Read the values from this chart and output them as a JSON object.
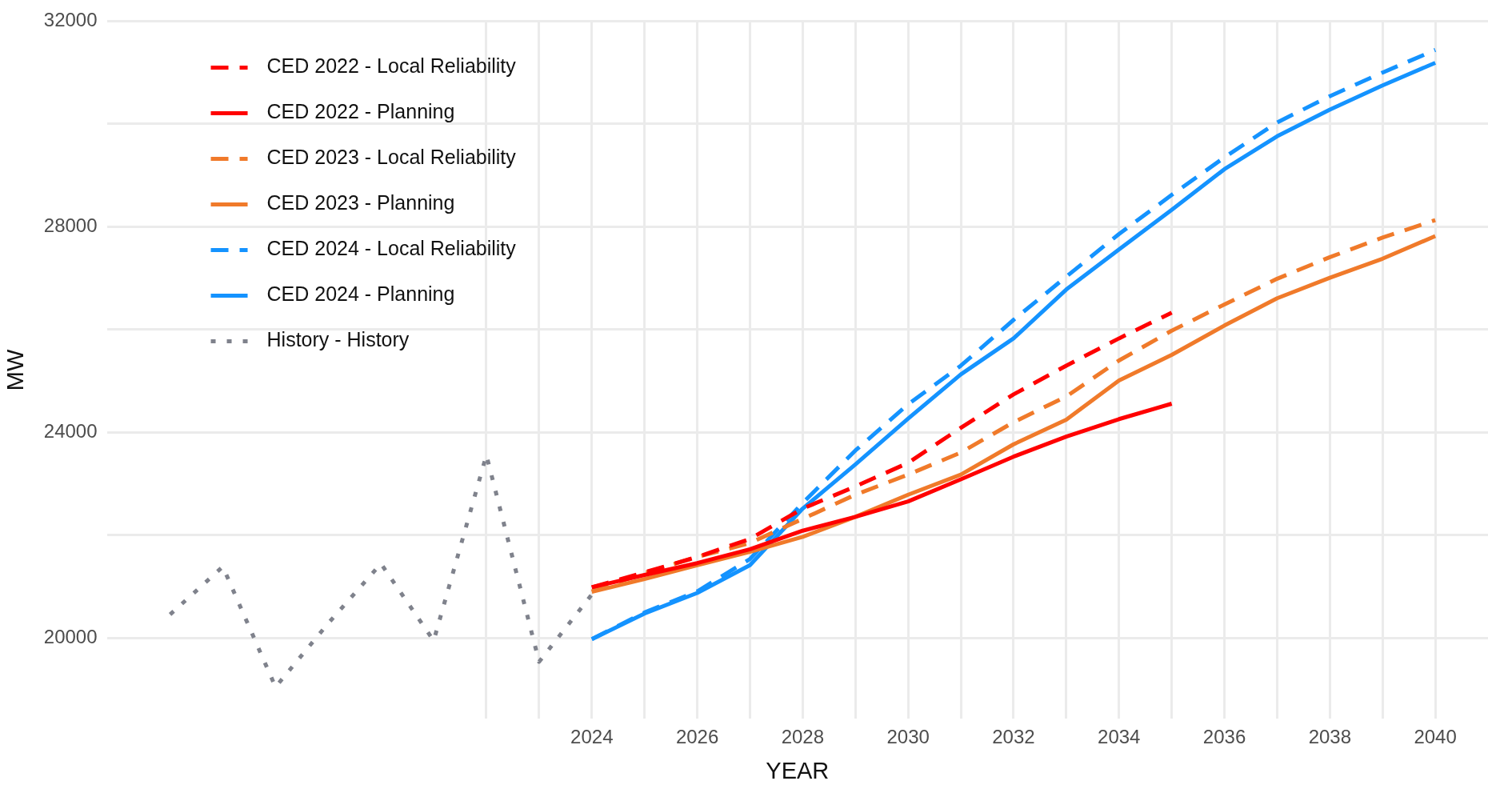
{
  "chart_data": {
    "type": "line",
    "xlabel": "YEAR",
    "ylabel": "MW",
    "xlim": [
      2014.8,
      2041
    ],
    "ylim": [
      18430,
      32000
    ],
    "xticks": [
      {
        "value": 2022,
        "label": null
      },
      {
        "value": 2023,
        "label": null
      },
      2024,
      {
        "value": 2025,
        "label": null
      },
      2026,
      {
        "value": 2027,
        "label": null
      },
      2028,
      {
        "value": 2029,
        "label": null
      },
      2030,
      {
        "value": 2031,
        "label": null
      },
      2032,
      {
        "value": 2033,
        "label": null
      },
      2034,
      {
        "value": 2035,
        "label": null
      },
      2036,
      {
        "value": 2037,
        "label": null
      },
      2038,
      {
        "value": 2039,
        "label": null
      },
      2040
    ],
    "yticks": [
      20000,
      {
        "value": 22000,
        "label": null
      },
      24000,
      {
        "value": 26000,
        "label": null
      },
      28000,
      {
        "value": 30000,
        "label": null
      },
      32000
    ],
    "grid": true,
    "legend": "top left",
    "marker": "none",
    "series": [
      {
        "name": "CED 2022 - Local Reliability",
        "color": "#ff0000",
        "line_style": "dashed",
        "x": [
          2024,
          2025,
          2026,
          2027,
          2028,
          2029,
          2030,
          2031,
          2032,
          2033,
          2034,
          2035
        ],
        "values": [
          20990,
          21280,
          21580,
          21930,
          22520,
          22950,
          23410,
          24090,
          24740,
          25300,
          25830,
          26330
        ]
      },
      {
        "name": "CED 2022 - Planning",
        "color": "#ff0000",
        "line_style": "solid",
        "x": [
          2024,
          2025,
          2026,
          2027,
          2028,
          2029,
          2030,
          2031,
          2032,
          2033,
          2034,
          2035
        ],
        "values": [
          20990,
          21230,
          21460,
          21730,
          22090,
          22360,
          22660,
          23090,
          23530,
          23920,
          24260,
          24560
        ]
      },
      {
        "name": "CED 2023 - Local Reliability",
        "color": "#f07a2a",
        "line_style": "dashed",
        "x": [
          2024,
          2025,
          2026,
          2027,
          2028,
          2029,
          2030,
          2031,
          2032,
          2033,
          2034,
          2035,
          2036,
          2037,
          2038,
          2039,
          2040
        ],
        "values": [
          20910,
          21270,
          21580,
          21850,
          22320,
          22790,
          23180,
          23610,
          24200,
          24700,
          25400,
          25980,
          26490,
          26990,
          27410,
          27790,
          28130
        ]
      },
      {
        "name": "CED 2023 - Planning",
        "color": "#f07a2a",
        "line_style": "solid",
        "x": [
          2024,
          2025,
          2026,
          2027,
          2028,
          2029,
          2030,
          2031,
          2032,
          2033,
          2034,
          2035,
          2036,
          2037,
          2038,
          2039,
          2040
        ],
        "values": [
          20900,
          21150,
          21420,
          21680,
          21970,
          22360,
          22790,
          23180,
          23770,
          24250,
          25010,
          25510,
          26080,
          26610,
          27010,
          27380,
          27820
        ]
      },
      {
        "name": "CED 2024 - Local Reliability",
        "color": "#1493ff",
        "line_style": "dashed",
        "x": [
          2024,
          2025,
          2026,
          2027,
          2028,
          2029,
          2030,
          2031,
          2032,
          2033,
          2034,
          2035,
          2036,
          2037,
          2038,
          2039,
          2040
        ],
        "values": [
          19980,
          20500,
          20910,
          21540,
          22630,
          23650,
          24550,
          25300,
          26190,
          27030,
          27860,
          28620,
          29350,
          30030,
          30540,
          31000,
          31440
        ]
      },
      {
        "name": "CED 2024 - Planning",
        "color": "#1493ff",
        "line_style": "solid",
        "x": [
          2024,
          2025,
          2026,
          2027,
          2028,
          2029,
          2030,
          2031,
          2032,
          2033,
          2034,
          2035,
          2036,
          2037,
          2038,
          2039,
          2040
        ],
        "values": [
          19980,
          20480,
          20880,
          21420,
          22520,
          23380,
          24270,
          25130,
          25830,
          26780,
          27560,
          28330,
          29120,
          29760,
          30280,
          30750,
          31190
        ]
      },
      {
        "name": "History - History",
        "color": "#7f828c",
        "line_style": "dotted",
        "x": [
          2016,
          2017,
          2018,
          2019,
          2020,
          2021,
          2022,
          2023,
          2024
        ],
        "values": [
          20460,
          21390,
          19050,
          20290,
          21450,
          19950,
          23560,
          19540,
          20850
        ]
      }
    ]
  }
}
